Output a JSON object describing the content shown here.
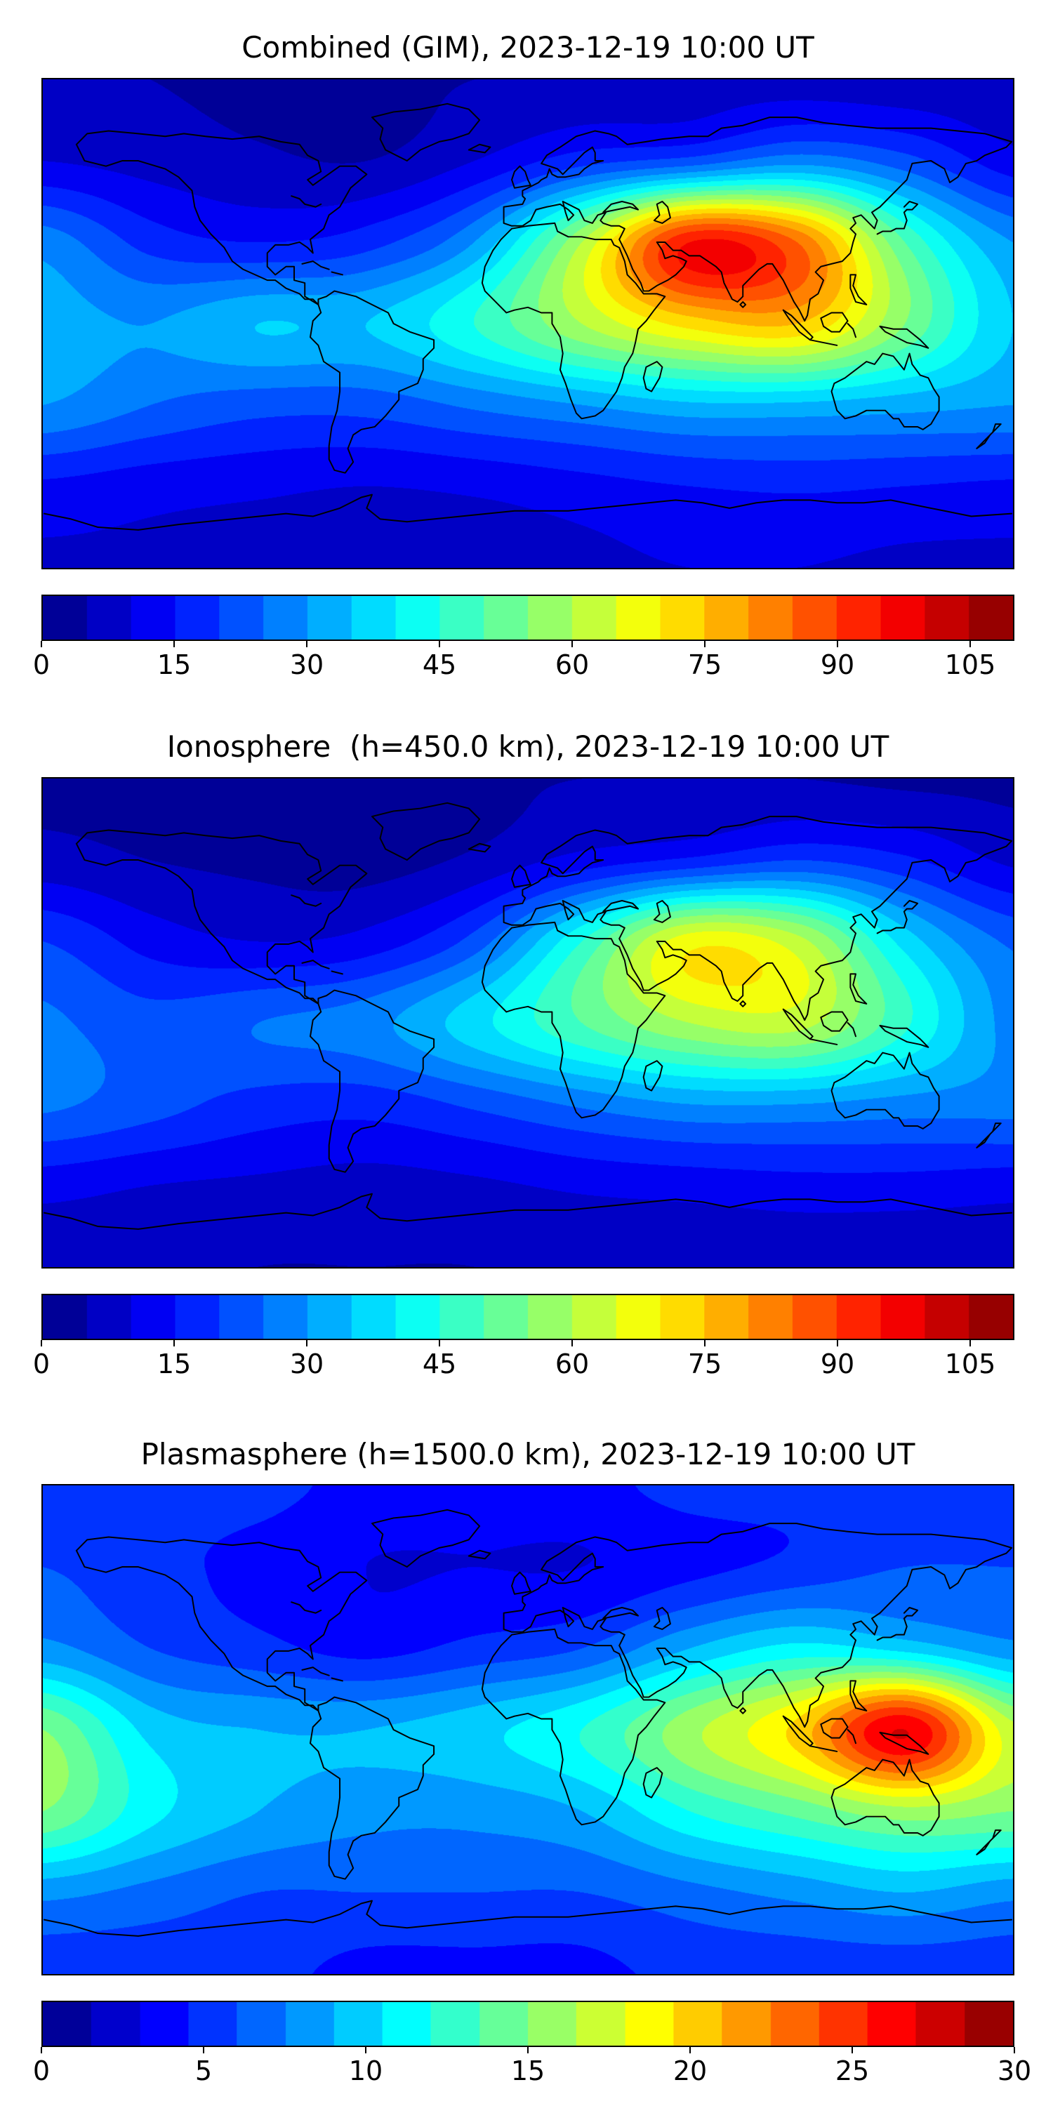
{
  "figure": {
    "background_color": "#ffffff",
    "colormap_name": "jet",
    "panel_count": 3
  },
  "chart_data": [
    {
      "type": "heatmap",
      "title": "Combined (GIM), 2023-12-19 10:00 UT",
      "projection": "equirectangular",
      "colormap": "jet",
      "value_range": [
        0,
        110
      ],
      "contour_step": 5,
      "colorbar_ticks": [
        0,
        15,
        30,
        45,
        60,
        75,
        90,
        105
      ],
      "x_range": [
        -180,
        180
      ],
      "y_range": [
        -90,
        90
      ],
      "grid": {
        "lons": [
          -180,
          -140,
          -100,
          -60,
          -20,
          20,
          60,
          100,
          140,
          180
        ],
        "lats": [
          90,
          60,
          30,
          0,
          -30,
          -60,
          -90
        ],
        "values": [
          [
            6,
            5,
            4,
            4,
            5,
            6,
            7,
            7,
            6,
            6
          ],
          [
            10,
            8,
            6,
            5,
            10,
            18,
            22,
            28,
            22,
            12
          ],
          [
            28,
            18,
            15,
            18,
            30,
            60,
            95,
            85,
            50,
            30
          ],
          [
            32,
            30,
            35,
            35,
            45,
            60,
            72,
            75,
            55,
            35
          ],
          [
            30,
            25,
            22,
            22,
            26,
            30,
            34,
            34,
            32,
            30
          ],
          [
            14,
            12,
            11,
            10,
            11,
            13,
            15,
            16,
            15,
            14
          ],
          [
            9,
            9,
            8,
            8,
            8,
            9,
            10,
            10,
            9,
            9
          ]
        ]
      }
    },
    {
      "type": "heatmap",
      "title": "Ionosphere  (h=450.0 km), 2023-12-19 10:00 UT",
      "projection": "equirectangular",
      "colormap": "jet",
      "value_range": [
        0,
        110
      ],
      "contour_step": 5,
      "colorbar_ticks": [
        0,
        15,
        30,
        45,
        60,
        75,
        90,
        105
      ],
      "x_range": [
        -180,
        180
      ],
      "y_range": [
        -90,
        90
      ],
      "grid": {
        "lons": [
          -180,
          -140,
          -100,
          -60,
          -20,
          20,
          60,
          100,
          140,
          180
        ],
        "lats": [
          90,
          60,
          30,
          0,
          -30,
          -60,
          -90
        ],
        "values": [
          [
            4,
            4,
            3,
            3,
            4,
            5,
            5,
            5,
            4,
            4
          ],
          [
            7,
            5,
            4,
            3,
            6,
            12,
            16,
            20,
            16,
            9
          ],
          [
            20,
            13,
            10,
            12,
            22,
            45,
            68,
            62,
            38,
            24
          ],
          [
            26,
            22,
            25,
            28,
            38,
            50,
            60,
            62,
            46,
            28
          ],
          [
            26,
            22,
            18,
            17,
            21,
            26,
            30,
            30,
            28,
            27
          ],
          [
            12,
            10,
            9,
            8,
            9,
            11,
            12,
            13,
            13,
            12
          ],
          [
            6,
            6,
            5,
            5,
            5,
            6,
            7,
            7,
            6,
            6
          ]
        ]
      }
    },
    {
      "type": "heatmap",
      "title": "Plasmasphere (h=1500.0 km), 2023-12-19 10:00 UT",
      "projection": "equirectangular",
      "colormap": "jet",
      "value_range": [
        0,
        30
      ],
      "contour_step": 1.5,
      "colorbar_ticks": [
        0,
        5,
        10,
        15,
        20,
        25,
        30
      ],
      "x_range": [
        -180,
        180
      ],
      "y_range": [
        -90,
        90
      ],
      "grid": {
        "lons": [
          -180,
          -140,
          -100,
          -60,
          -20,
          20,
          60,
          100,
          140,
          180
        ],
        "lats": [
          90,
          60,
          30,
          0,
          -30,
          -60,
          -90
        ],
        "values": [
          [
            5,
            5,
            5,
            4,
            4,
            4,
            5,
            5,
            5,
            5
          ],
          [
            6,
            5,
            4,
            3,
            3,
            3,
            4,
            5,
            6,
            6
          ],
          [
            8,
            6,
            5,
            4,
            5,
            6,
            9,
            11,
            10,
            8
          ],
          [
            15,
            10,
            9,
            9,
            10,
            12,
            16,
            20,
            27,
            17
          ],
          [
            15,
            11,
            9,
            8,
            8,
            9,
            12,
            14,
            16,
            15
          ],
          [
            8,
            7,
            6,
            6,
            6,
            6,
            7,
            8,
            9,
            8
          ],
          [
            5,
            5,
            5,
            4,
            4,
            4,
            5,
            5,
            5,
            5
          ]
        ]
      }
    }
  ]
}
